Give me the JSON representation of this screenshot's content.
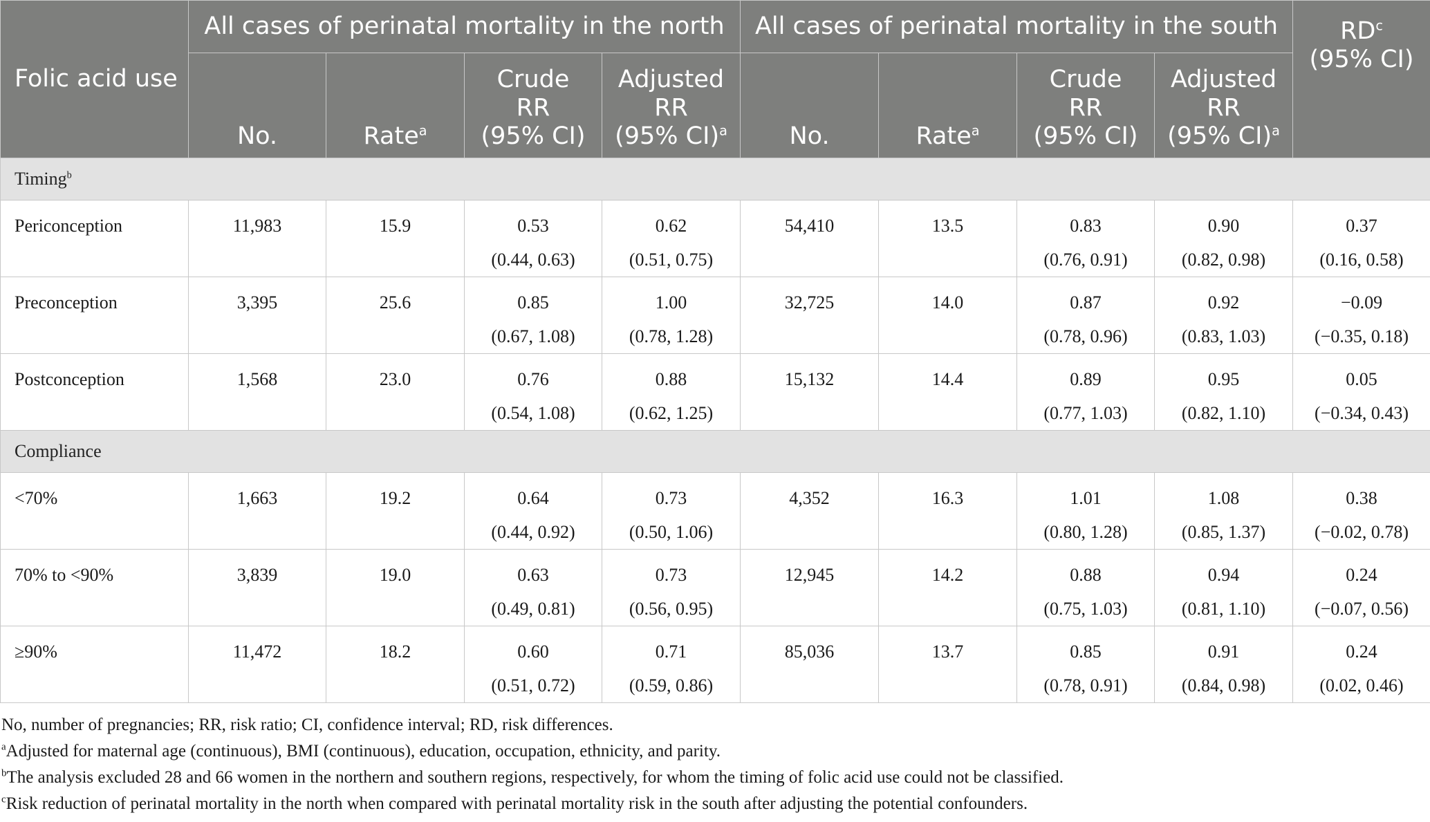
{
  "header": {
    "folic": "Folic acid use",
    "north_group": "All cases of perinatal mortality in the north",
    "south_group": "All cases of perinatal mortality in the south",
    "rd_label": "RD",
    "rd_sup": "c",
    "rd_ci": "(95% CI)",
    "no": "No.",
    "rate": "Rate",
    "rate_sup": "a",
    "crude_l1": "Crude",
    "crude_l2": "RR",
    "crude_l3": "(95% CI)",
    "adj_l1": "Adjusted",
    "adj_l2": "RR",
    "adj_l3": "(95% CI)",
    "adj_sup": "a"
  },
  "sections": [
    {
      "title": "Timing",
      "sup": "b",
      "rows": [
        {
          "label": "Periconception",
          "north_no": "11,983",
          "north_rate": "15.9",
          "north_crude": "0.53",
          "north_crude_ci": "(0.44, 0.63)",
          "north_adj": "0.62",
          "north_adj_ci": "(0.51, 0.75)",
          "south_no": "54,410",
          "south_rate": "13.5",
          "south_crude": "0.83",
          "south_crude_ci": "(0.76, 0.91)",
          "south_adj": "0.90",
          "south_adj_ci": "(0.82, 0.98)",
          "rd": "0.37",
          "rd_ci": "(0.16, 0.58)"
        },
        {
          "label": "Preconception",
          "north_no": "3,395",
          "north_rate": "25.6",
          "north_crude": "0.85",
          "north_crude_ci": "(0.67, 1.08)",
          "north_adj": "1.00",
          "north_adj_ci": "(0.78, 1.28)",
          "south_no": "32,725",
          "south_rate": "14.0",
          "south_crude": "0.87",
          "south_crude_ci": "(0.78, 0.96)",
          "south_adj": "0.92",
          "south_adj_ci": "(0.83, 1.03)",
          "rd": "−0.09",
          "rd_ci": "(−0.35, 0.18)"
        },
        {
          "label": "Postconception",
          "north_no": "1,568",
          "north_rate": "23.0",
          "north_crude": "0.76",
          "north_crude_ci": "(0.54, 1.08)",
          "north_adj": "0.88",
          "north_adj_ci": "(0.62, 1.25)",
          "south_no": "15,132",
          "south_rate": "14.4",
          "south_crude": "0.89",
          "south_crude_ci": "(0.77, 1.03)",
          "south_adj": "0.95",
          "south_adj_ci": "(0.82, 1.10)",
          "rd": "0.05",
          "rd_ci": "(−0.34, 0.43)"
        }
      ]
    },
    {
      "title": "Compliance",
      "sup": "",
      "rows": [
        {
          "label": "<70%",
          "north_no": "1,663",
          "north_rate": "19.2",
          "north_crude": "0.64",
          "north_crude_ci": "(0.44, 0.92)",
          "north_adj": "0.73",
          "north_adj_ci": "(0.50, 1.06)",
          "south_no": "4,352",
          "south_rate": "16.3",
          "south_crude": "1.01",
          "south_crude_ci": "(0.80, 1.28)",
          "south_adj": "1.08",
          "south_adj_ci": "(0.85, 1.37)",
          "rd": "0.38",
          "rd_ci": "(−0.02, 0.78)"
        },
        {
          "label": "70% to <90%",
          "north_no": "3,839",
          "north_rate": "19.0",
          "north_crude": "0.63",
          "north_crude_ci": "(0.49, 0.81)",
          "north_adj": "0.73",
          "north_adj_ci": "(0.56, 0.95)",
          "south_no": "12,945",
          "south_rate": "14.2",
          "south_crude": "0.88",
          "south_crude_ci": "(0.75, 1.03)",
          "south_adj": "0.94",
          "south_adj_ci": "(0.81, 1.10)",
          "rd": "0.24",
          "rd_ci": "(−0.07, 0.56)"
        },
        {
          "label": "≥90%",
          "north_no": "11,472",
          "north_rate": "18.2",
          "north_crude": "0.60",
          "north_crude_ci": "(0.51, 0.72)",
          "north_adj": "0.71",
          "north_adj_ci": "(0.59, 0.86)",
          "south_no": "85,036",
          "south_rate": "13.7",
          "south_crude": "0.85",
          "south_crude_ci": "(0.78, 0.91)",
          "south_adj": "0.91",
          "south_adj_ci": "(0.84, 0.98)",
          "rd": "0.24",
          "rd_ci": "(0.02, 0.46)"
        }
      ]
    }
  ],
  "footnotes": {
    "abbrev": "No, number of pregnancies; RR, risk ratio; CI, confidence interval; RD, risk differences.",
    "a_mark": "a",
    "a": "Adjusted for maternal age (continuous), BMI (continuous), education, occupation, ethnicity, and parity.",
    "b_mark": "b",
    "b": "The analysis excluded 28 and 66 women in the northern and southern regions, respectively, for whom the timing of folic acid use could not be classified.",
    "c_mark": "c",
    "c": "Risk reduction of perinatal mortality in the north when compared with perinatal mortality risk in the south after adjusting the potential confounders."
  }
}
